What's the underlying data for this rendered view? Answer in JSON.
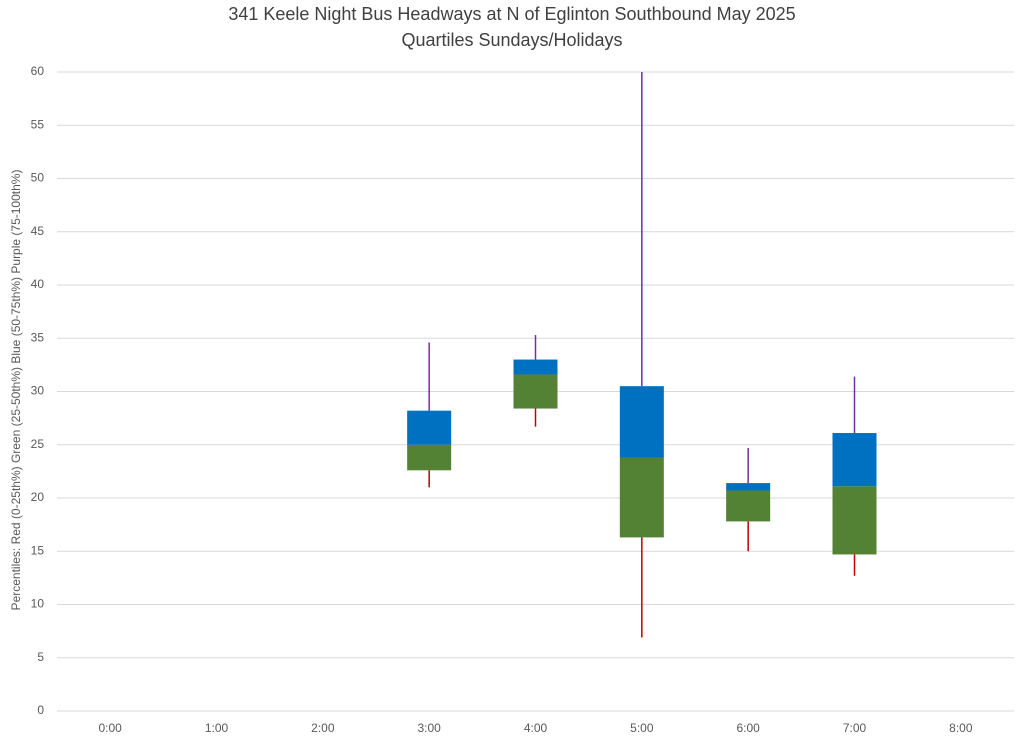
{
  "chart_data": {
    "type": "box",
    "title": "341 Keele Night Bus Headways at N of Eglinton Southbound May 2025",
    "subtitle": "Quartiles Sundays/Holidays",
    "y_label": "Percentiles:  Red (0-25th%)  Green (25-50th%)  Blue (50-75th%)  Purple (75-100th%)",
    "categories": [
      "0:00",
      "1:00",
      "2:00",
      "3:00",
      "4:00",
      "5:00",
      "6:00",
      "7:00",
      "8:00"
    ],
    "min": [
      null,
      null,
      null,
      21.0,
      26.7,
      6.9,
      15.0,
      12.7,
      null
    ],
    "q1": [
      null,
      null,
      null,
      22.6,
      28.4,
      16.3,
      17.8,
      14.7,
      null
    ],
    "median": [
      null,
      null,
      null,
      25.0,
      31.6,
      23.8,
      20.7,
      21.1,
      null
    ],
    "q3": [
      null,
      null,
      null,
      28.2,
      33.0,
      30.5,
      21.4,
      26.1,
      null
    ],
    "max": [
      null,
      null,
      null,
      34.6,
      35.3,
      60,
      24.7,
      31.4,
      null
    ],
    "colors": {
      "lower_whisker": "#c00000",
      "lower_box": "#548235",
      "upper_box": "#0070c0",
      "upper_whisker": "#7030a0"
    },
    "ylim": [
      0,
      60
    ],
    "yticks": [
      0,
      5,
      10,
      15,
      20,
      25,
      30,
      35,
      40,
      45,
      50,
      55,
      60
    ],
    "grid": true
  }
}
